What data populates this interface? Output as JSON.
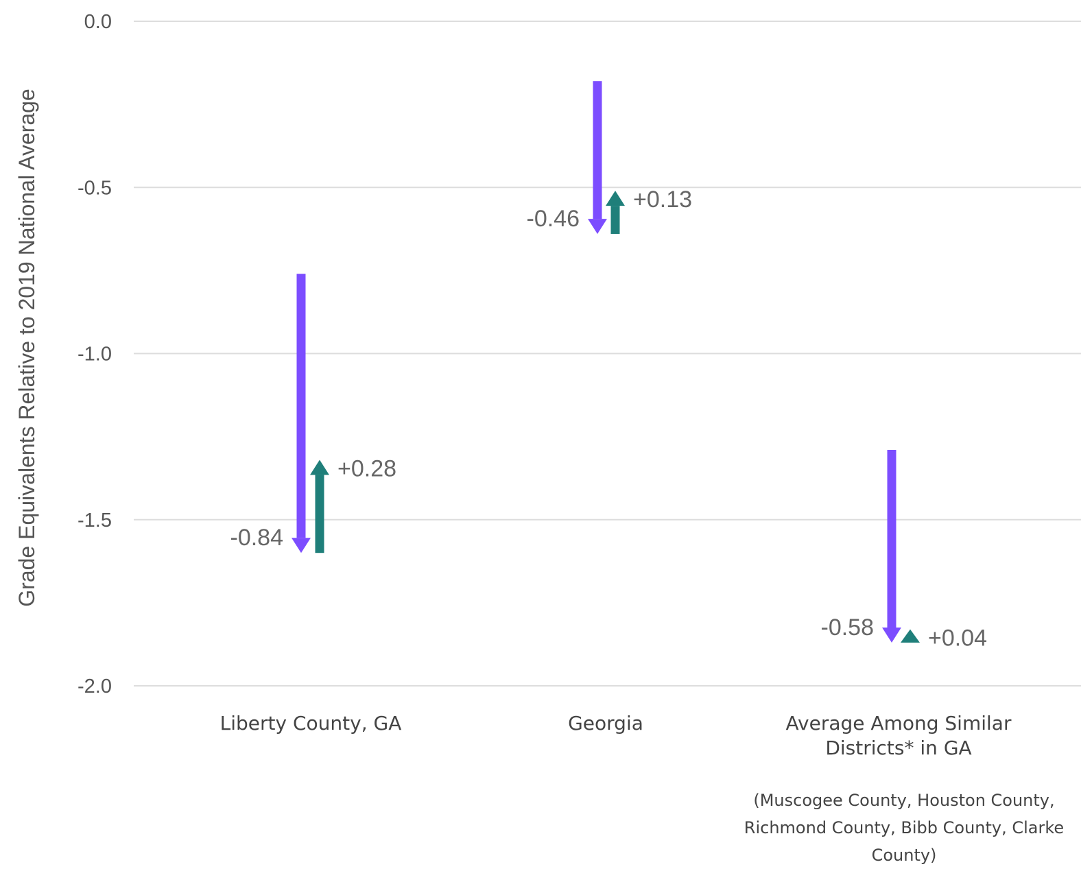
{
  "chart_data": {
    "type": "arrow",
    "ylabel": "Grade Equivalents Relative to 2019 National Average",
    "ylim": [
      -2.0,
      0.0
    ],
    "yticks": [
      "0.0",
      "-0.5",
      "-1.0",
      "-1.5",
      "-2.0"
    ],
    "grid": true,
    "categories": [
      {
        "lines": [
          "Liberty County, GA"
        ]
      },
      {
        "lines": [
          "Georgia"
        ]
      },
      {
        "lines": [
          "Average Among Similar",
          "Districts* in GA"
        ],
        "note": [
          "(Muscogee County, Houston County,",
          "Richmond County, Bibb County, Clarke",
          "County)"
        ]
      }
    ],
    "series": [
      {
        "color": "#7c4dff",
        "start": [
          -0.76,
          -0.18,
          -1.29
        ],
        "end": [
          -1.6,
          -0.64,
          -1.87
        ],
        "labels": [
          "-0.84",
          "-0.46",
          "-0.58"
        ]
      },
      {
        "color": "#1f7f7a",
        "start": [
          -1.6,
          -0.64,
          -1.87
        ],
        "end": [
          -1.32,
          -0.51,
          -1.83
        ],
        "labels": [
          "+0.28",
          "+0.13",
          "+0.04"
        ]
      }
    ]
  }
}
